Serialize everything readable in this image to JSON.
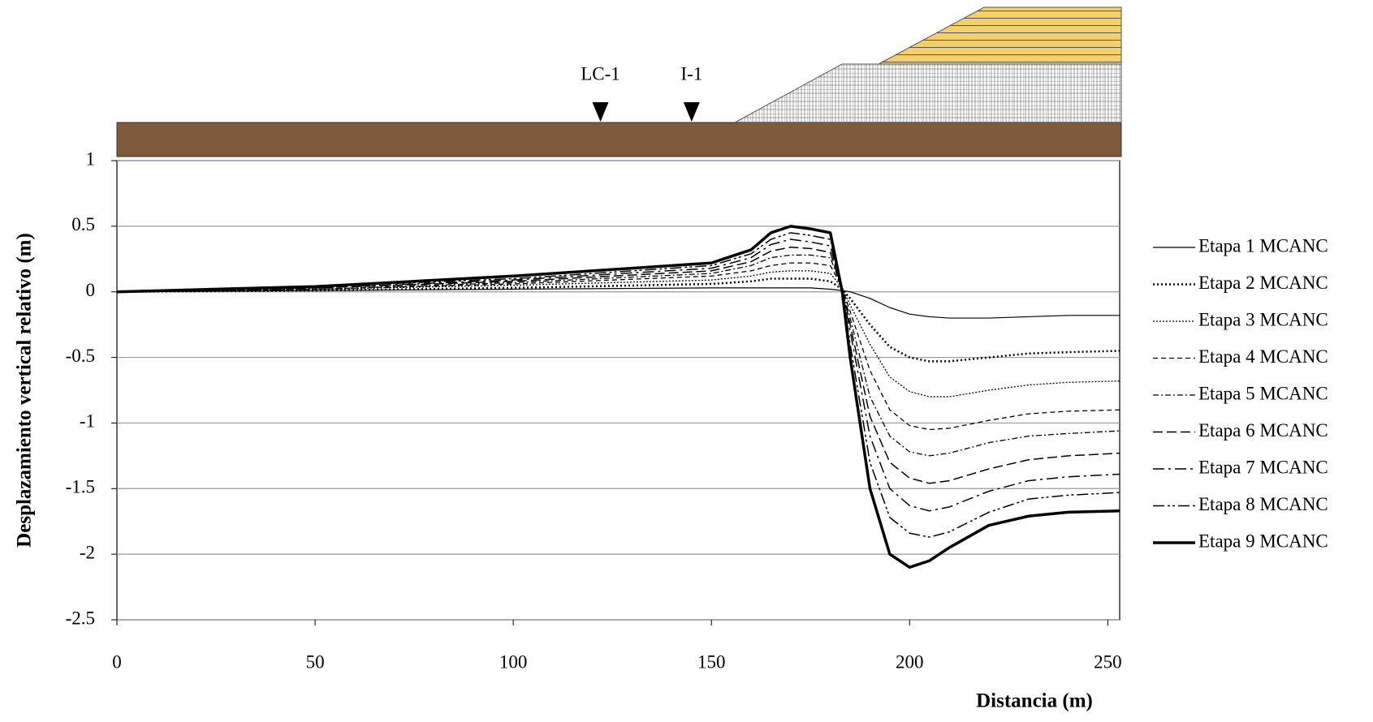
{
  "chart_data": {
    "type": "line",
    "y_label": "Desplazamiento vertical relativo (m)",
    "x_label": "Distancia (m)",
    "annotations": [
      {
        "label": "LC-1",
        "x": 122
      },
      {
        "label": "I-1",
        "x": 145
      }
    ],
    "xlim": [
      0,
      253
    ],
    "xticks": [
      0,
      50,
      100,
      150,
      200,
      250
    ],
    "ylim": [
      -2.5,
      1
    ],
    "yticks": [
      1,
      0.5,
      0,
      -0.5,
      -1,
      -1.5,
      -2,
      -2.5
    ],
    "grid": true,
    "legend": "right",
    "x": [
      0,
      50,
      100,
      150,
      160,
      165,
      170,
      175,
      180,
      183,
      185,
      190,
      195,
      200,
      205,
      210,
      220,
      230,
      240,
      253
    ],
    "series": [
      {
        "name": "Etapa 1 MCANC",
        "color": "#000000",
        "dash": "none",
        "width": 1.2,
        "values": [
          0,
          0.01,
          0.02,
          0.03,
          0.03,
          0.03,
          0.03,
          0.03,
          0.02,
          0.01,
          0,
          -0.05,
          -0.12,
          -0.17,
          -0.19,
          -0.2,
          -0.2,
          -0.19,
          -0.18,
          -0.18
        ]
      },
      {
        "name": "Etapa 2 MCANC",
        "color": "#000000",
        "dash": "2,3",
        "width": 2.5,
        "values": [
          0,
          0.01,
          0.03,
          0.06,
          0.08,
          0.1,
          0.1,
          0.1,
          0.08,
          0.02,
          -0.05,
          -0.25,
          -0.42,
          -0.5,
          -0.53,
          -0.53,
          -0.5,
          -0.47,
          -0.46,
          -0.45
        ]
      },
      {
        "name": "Etapa 3 MCANC",
        "color": "#000000",
        "dash": "2,2",
        "width": 1.3,
        "values": [
          0,
          0.02,
          0.05,
          0.09,
          0.12,
          0.15,
          0.16,
          0.16,
          0.14,
          0.03,
          -0.1,
          -0.4,
          -0.65,
          -0.76,
          -0.8,
          -0.8,
          -0.75,
          -0.71,
          -0.69,
          -0.68
        ]
      },
      {
        "name": "Etapa 4 MCANC",
        "color": "#000000",
        "dash": "6,4",
        "width": 1.3,
        "values": [
          0,
          0.02,
          0.06,
          0.12,
          0.16,
          0.2,
          0.22,
          0.22,
          0.2,
          0.03,
          -0.15,
          -0.6,
          -0.9,
          -1.02,
          -1.05,
          -1.04,
          -0.98,
          -0.93,
          -0.91,
          -0.9
        ]
      },
      {
        "name": "Etapa 5 MCANC",
        "color": "#000000",
        "dash": "7,3,2,3",
        "width": 1.3,
        "values": [
          0,
          0.02,
          0.07,
          0.14,
          0.2,
          0.26,
          0.28,
          0.28,
          0.26,
          0.02,
          -0.2,
          -0.8,
          -1.1,
          -1.22,
          -1.25,
          -1.23,
          -1.15,
          -1.1,
          -1.08,
          -1.06
        ]
      },
      {
        "name": "Etapa 6 MCANC",
        "color": "#000000",
        "dash": "12,5",
        "width": 1.5,
        "values": [
          0,
          0.03,
          0.08,
          0.16,
          0.23,
          0.31,
          0.34,
          0.33,
          0.3,
          0.02,
          -0.25,
          -0.95,
          -1.3,
          -1.42,
          -1.46,
          -1.44,
          -1.35,
          -1.28,
          -1.25,
          -1.23
        ]
      },
      {
        "name": "Etapa 7 MCANC",
        "color": "#000000",
        "dash": "14,5,3,5",
        "width": 1.5,
        "values": [
          0,
          0.03,
          0.09,
          0.18,
          0.26,
          0.36,
          0.4,
          0.38,
          0.35,
          0.01,
          -0.3,
          -1.1,
          -1.5,
          -1.63,
          -1.67,
          -1.64,
          -1.52,
          -1.44,
          -1.41,
          -1.39
        ]
      },
      {
        "name": "Etapa 8 MCANC",
        "color": "#000000",
        "dash": "14,4,3,3,3,4",
        "width": 1.5,
        "values": [
          0,
          0.04,
          0.1,
          0.2,
          0.29,
          0.4,
          0.45,
          0.43,
          0.4,
          0.01,
          -0.4,
          -1.3,
          -1.72,
          -1.84,
          -1.87,
          -1.83,
          -1.68,
          -1.58,
          -1.55,
          -1.53
        ]
      },
      {
        "name": "Etapa 9 MCANC",
        "color": "#000000",
        "dash": "none",
        "width": 3.5,
        "values": [
          0,
          0.04,
          0.12,
          0.22,
          0.32,
          0.45,
          0.5,
          0.48,
          0.45,
          0,
          -0.5,
          -1.5,
          -2.0,
          -2.1,
          -2.05,
          -1.95,
          -1.78,
          -1.71,
          -1.68,
          -1.67
        ]
      }
    ]
  }
}
